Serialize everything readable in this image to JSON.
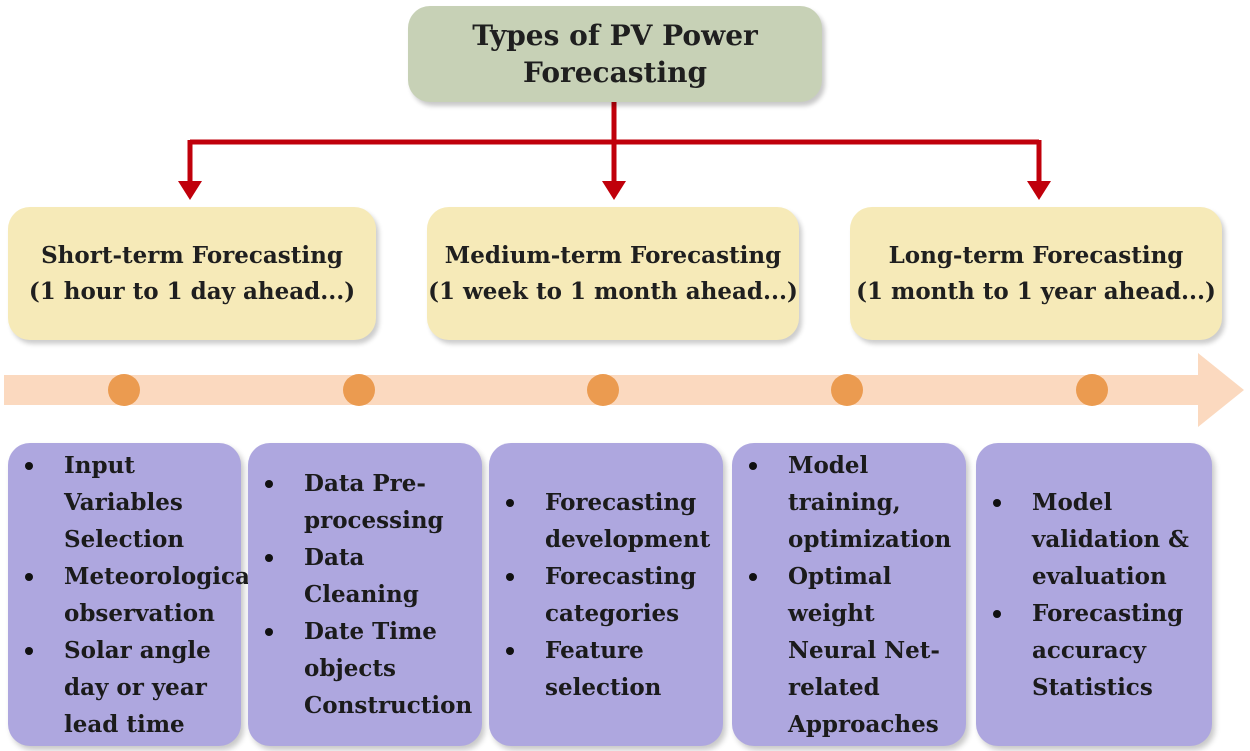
{
  "root": {
    "title_line1": "Types of PV Power",
    "title_line2": "Forecasting"
  },
  "terms": [
    {
      "name": "Short-term Forecasting",
      "range": "(1 hour to 1 day ahead...)"
    },
    {
      "name": "Medium-term Forecasting",
      "range": "(1 week to 1 month ahead...)"
    },
    {
      "name": "Long-term Forecasting",
      "range": "(1 month to 1 year ahead...)"
    }
  ],
  "steps": [
    {
      "items": [
        "Input Variables Selection",
        "Meteorological observation",
        "Solar angle day or year lead time"
      ]
    },
    {
      "items": [
        "Data Pre-processing",
        "Data Cleaning",
        "Date Time objects Construction"
      ]
    },
    {
      "items": [
        "Forecasting development",
        "Forecasting categories",
        "Feature selection"
      ]
    },
    {
      "items": [
        "Model training, optimization",
        "Optimal weight Neural Net-related Approaches"
      ]
    },
    {
      "items": [
        "Model validation & evaluation",
        "Forecasting accuracy Statistics"
      ]
    }
  ],
  "colors": {
    "root_box": "#c7d1b6",
    "term_box": "#f6eab8",
    "step_box": "#aea7df",
    "connector": "#c0000b",
    "timeline_arrow": "#fbd9bf",
    "timeline_dot": "#eb9b50"
  }
}
